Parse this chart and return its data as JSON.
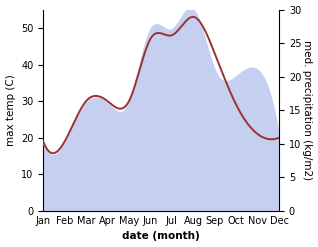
{
  "months": [
    "Jan",
    "Feb",
    "Mar",
    "Apr",
    "May",
    "Jun",
    "Jul",
    "Aug",
    "Sep",
    "Oct",
    "Nov",
    "Dec"
  ],
  "temperature": [
    19,
    19,
    30,
    30,
    30,
    47,
    48,
    53,
    43,
    29,
    21,
    20
  ],
  "precipitation": [
    10,
    10,
    16,
    16,
    16,
    27,
    27,
    30,
    21,
    20,
    21,
    11
  ],
  "temp_ylim": [
    0,
    55
  ],
  "precip_ylim": [
    0,
    30
  ],
  "left_ticks": [
    0,
    10,
    20,
    30,
    40,
    50
  ],
  "right_ticks": [
    0,
    5,
    10,
    15,
    20,
    25,
    30
  ],
  "temp_color": "#993333",
  "precip_fill_color": "#c5cff0",
  "xlabel": "date (month)",
  "ylabel_left": "max temp (C)",
  "ylabel_right": "med. precipitation (kg/m2)",
  "label_fontsize": 7.5,
  "tick_fontsize": 7,
  "line_width": 1.4
}
